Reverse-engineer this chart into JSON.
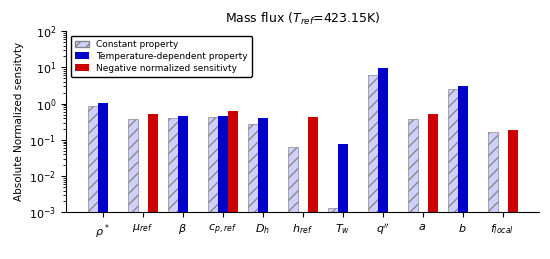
{
  "title": "Mass flux ($T_{ref}$=423.15K)",
  "ylabel": "Absolute Normalized sensitvty",
  "constant_property": [
    0.85,
    0.38,
    0.4,
    0.42,
    0.28,
    0.065,
    0.0013,
    6.0,
    0.38,
    2.6,
    0.17
  ],
  "temp_dependent": [
    1.05,
    null,
    0.45,
    0.45,
    0.4,
    null,
    0.075,
    9.5,
    null,
    3.0,
    null
  ],
  "negative_sensitivity": [
    null,
    0.52,
    null,
    0.62,
    null,
    0.42,
    null,
    null,
    0.52,
    null,
    0.19
  ],
  "ylim_min": 0.001,
  "ylim_max": 100,
  "constant_color": "#d0d0ff",
  "constant_hatch": "///",
  "temp_color": "#0000cc",
  "neg_color": "#cc0000",
  "figsize": [
    5.5,
    2.59
  ],
  "dpi": 100,
  "bar_width": 0.25
}
